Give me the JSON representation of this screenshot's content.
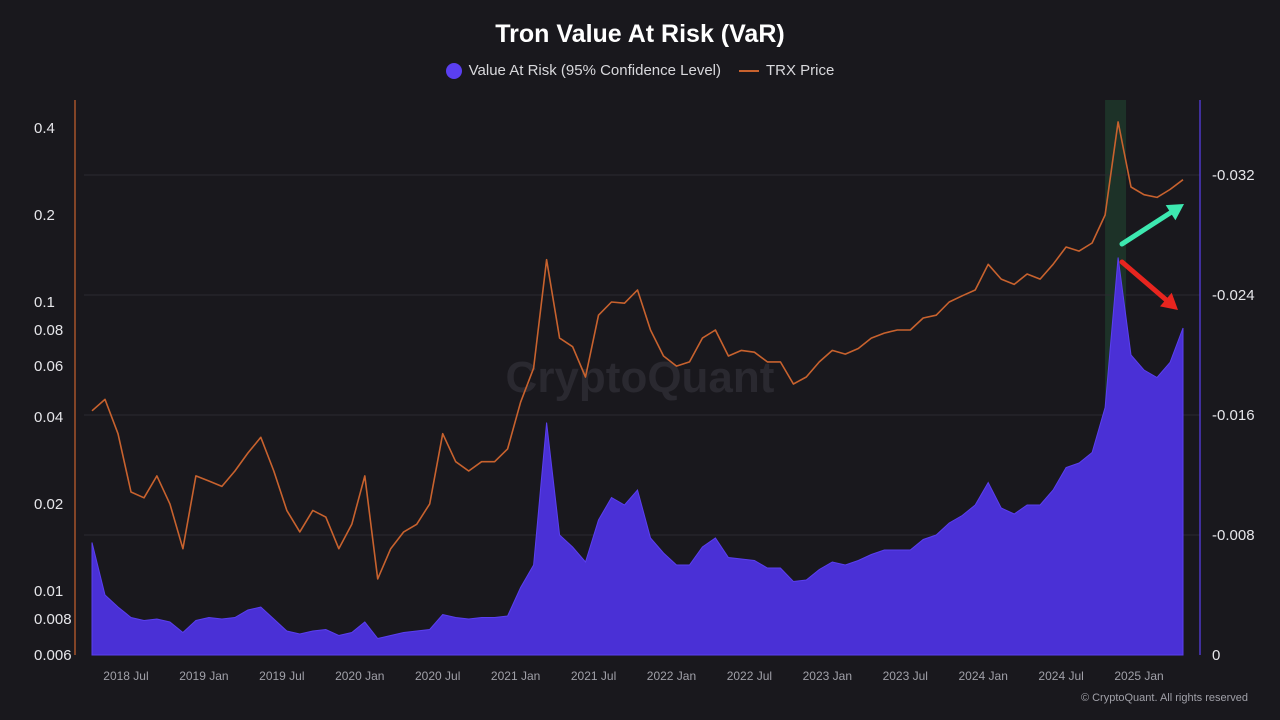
{
  "colors": {
    "background": "#19181d",
    "var_fill": "#4a30d6",
    "var_fill_top": "#5a3ff0",
    "price_line": "#c8622e",
    "left_axis": "#c8622e",
    "right_axis": "#5a3ff0",
    "highlight": "#1f3b2c",
    "arrow_up": "#3de8b0",
    "arrow_down": "#e8251f",
    "grid": "#2b2a31",
    "tick_text": "#e6e6ea",
    "date_text": "#a0a0a8"
  },
  "icons": [
    "arrow-up-green",
    "arrow-down-red",
    "copyright-icon"
  ],
  "footer": {
    "copyright": "© CryptoQuant. All rights reserved"
  },
  "watermark": "CryptoQuant",
  "chart_data": {
    "type": "area",
    "title": "Tron Value At Risk (VaR)",
    "legend": [
      {
        "name": "Value At Risk (95% Confidence Level)",
        "marker": "dot",
        "color": "#4a30d6"
      },
      {
        "name": "TRX Price",
        "marker": "line",
        "color": "#c8622e"
      }
    ],
    "x_ticks": [
      "2018 Jul",
      "2019 Jan",
      "2019 Jul",
      "2020 Jan",
      "2020 Jul",
      "2021 Jan",
      "2021 Jul",
      "2022 Jan",
      "2022 Jul",
      "2023 Jan",
      "2023 Jul",
      "2024 Jan",
      "2024 Jul",
      "2025 Jan"
    ],
    "x_range": [
      "2018-05",
      "2025-05"
    ],
    "left_axis": {
      "scale": "log",
      "ticks": [
        "0.4",
        "0.2",
        "0.1",
        "0.08",
        "0.06",
        "0.04",
        "0.02",
        "0.01",
        "0.008",
        "0.006"
      ],
      "range": [
        0.006,
        0.5
      ]
    },
    "right_axis": {
      "ticks": [
        "-0.032",
        "-0.024",
        "-0.016",
        "-0.008",
        "0"
      ],
      "range": [
        0,
        -0.037
      ]
    },
    "highlight_period": [
      "2024-11",
      "2024-12"
    ],
    "series": [
      {
        "name": "TRX Price",
        "type": "line",
        "axis": "left",
        "points": [
          [
            "2018-05",
            0.042
          ],
          [
            "2018-06",
            0.046
          ],
          [
            "2018-07",
            0.035
          ],
          [
            "2018-08",
            0.022
          ],
          [
            "2018-09",
            0.021
          ],
          [
            "2018-10",
            0.025
          ],
          [
            "2018-11",
            0.02
          ],
          [
            "2018-12",
            0.014
          ],
          [
            "2019-01",
            0.025
          ],
          [
            "2019-02",
            0.024
          ],
          [
            "2019-03",
            0.023
          ],
          [
            "2019-04",
            0.026
          ],
          [
            "2019-05",
            0.03
          ],
          [
            "2019-06",
            0.034
          ],
          [
            "2019-07",
            0.026
          ],
          [
            "2019-08",
            0.019
          ],
          [
            "2019-09",
            0.016
          ],
          [
            "2019-10",
            0.019
          ],
          [
            "2019-11",
            0.018
          ],
          [
            "2019-12",
            0.014
          ],
          [
            "2020-01",
            0.017
          ],
          [
            "2020-02",
            0.025
          ],
          [
            "2020-03",
            0.011
          ],
          [
            "2020-04",
            0.014
          ],
          [
            "2020-05",
            0.016
          ],
          [
            "2020-06",
            0.017
          ],
          [
            "2020-07",
            0.02
          ],
          [
            "2020-08",
            0.035
          ],
          [
            "2020-09",
            0.028
          ],
          [
            "2020-10",
            0.026
          ],
          [
            "2020-11",
            0.028
          ],
          [
            "2020-12",
            0.028
          ],
          [
            "2021-01",
            0.031
          ],
          [
            "2021-02",
            0.045
          ],
          [
            "2021-03",
            0.059
          ],
          [
            "2021-04",
            0.14
          ],
          [
            "2021-05",
            0.075
          ],
          [
            "2021-06",
            0.07
          ],
          [
            "2021-07",
            0.055
          ],
          [
            "2021-08",
            0.09
          ],
          [
            "2021-09",
            0.1
          ],
          [
            "2021-10",
            0.099
          ],
          [
            "2021-11",
            0.11
          ],
          [
            "2021-12",
            0.08
          ],
          [
            "2022-01",
            0.065
          ],
          [
            "2022-02",
            0.06
          ],
          [
            "2022-03",
            0.062
          ],
          [
            "2022-04",
            0.075
          ],
          [
            "2022-05",
            0.08
          ],
          [
            "2022-06",
            0.065
          ],
          [
            "2022-07",
            0.068
          ],
          [
            "2022-08",
            0.067
          ],
          [
            "2022-09",
            0.062
          ],
          [
            "2022-10",
            0.062
          ],
          [
            "2022-11",
            0.052
          ],
          [
            "2022-12",
            0.055
          ],
          [
            "2023-01",
            0.062
          ],
          [
            "2023-02",
            0.068
          ],
          [
            "2023-03",
            0.066
          ],
          [
            "2023-04",
            0.069
          ],
          [
            "2023-05",
            0.075
          ],
          [
            "2023-06",
            0.078
          ],
          [
            "2023-07",
            0.08
          ],
          [
            "2023-08",
            0.08
          ],
          [
            "2023-09",
            0.088
          ],
          [
            "2023-10",
            0.09
          ],
          [
            "2023-11",
            0.1
          ],
          [
            "2023-12",
            0.105
          ],
          [
            "2024-01",
            0.11
          ],
          [
            "2024-02",
            0.135
          ],
          [
            "2024-03",
            0.12
          ],
          [
            "2024-04",
            0.115
          ],
          [
            "2024-05",
            0.125
          ],
          [
            "2024-06",
            0.12
          ],
          [
            "2024-07",
            0.135
          ],
          [
            "2024-08",
            0.155
          ],
          [
            "2024-09",
            0.15
          ],
          [
            "2024-10",
            0.16
          ],
          [
            "2024-11",
            0.2
          ],
          [
            "2024-12",
            0.42
          ],
          [
            "2025-01",
            0.25
          ],
          [
            "2025-02",
            0.235
          ],
          [
            "2025-03",
            0.23
          ],
          [
            "2025-04",
            0.245
          ],
          [
            "2025-05",
            0.265
          ]
        ]
      },
      {
        "name": "Value At Risk (95% Confidence Level)",
        "type": "area",
        "axis": "right",
        "points": [
          [
            "2018-05",
            -0.0075
          ],
          [
            "2018-06",
            -0.004
          ],
          [
            "2018-07",
            -0.0032
          ],
          [
            "2018-08",
            -0.0025
          ],
          [
            "2018-09",
            -0.0023
          ],
          [
            "2018-10",
            -0.0024
          ],
          [
            "2018-11",
            -0.0022
          ],
          [
            "2018-12",
            -0.0015
          ],
          [
            "2019-01",
            -0.0023
          ],
          [
            "2019-02",
            -0.0025
          ],
          [
            "2019-03",
            -0.0024
          ],
          [
            "2019-04",
            -0.0025
          ],
          [
            "2019-05",
            -0.003
          ],
          [
            "2019-06",
            -0.0032
          ],
          [
            "2019-07",
            -0.0024
          ],
          [
            "2019-08",
            -0.0016
          ],
          [
            "2019-09",
            -0.0014
          ],
          [
            "2019-10",
            -0.0016
          ],
          [
            "2019-11",
            -0.0017
          ],
          [
            "2019-12",
            -0.0013
          ],
          [
            "2020-01",
            -0.0015
          ],
          [
            "2020-02",
            -0.0022
          ],
          [
            "2020-03",
            -0.0011
          ],
          [
            "2020-04",
            -0.0013
          ],
          [
            "2020-05",
            -0.0015
          ],
          [
            "2020-06",
            -0.0016
          ],
          [
            "2020-07",
            -0.0017
          ],
          [
            "2020-08",
            -0.0027
          ],
          [
            "2020-09",
            -0.0025
          ],
          [
            "2020-10",
            -0.0024
          ],
          [
            "2020-11",
            -0.0025
          ],
          [
            "2020-12",
            -0.0025
          ],
          [
            "2021-01",
            -0.0026
          ],
          [
            "2021-02",
            -0.0045
          ],
          [
            "2021-03",
            -0.006
          ],
          [
            "2021-04",
            -0.0155
          ],
          [
            "2021-05",
            -0.008
          ],
          [
            "2021-06",
            -0.0072
          ],
          [
            "2021-07",
            -0.0062
          ],
          [
            "2021-08",
            -0.009
          ],
          [
            "2021-09",
            -0.0105
          ],
          [
            "2021-10",
            -0.01
          ],
          [
            "2021-11",
            -0.011
          ],
          [
            "2021-12",
            -0.0078
          ],
          [
            "2022-01",
            -0.0068
          ],
          [
            "2022-02",
            -0.006
          ],
          [
            "2022-03",
            -0.006
          ],
          [
            "2022-04",
            -0.0072
          ],
          [
            "2022-05",
            -0.0078
          ],
          [
            "2022-06",
            -0.0065
          ],
          [
            "2022-07",
            -0.0064
          ],
          [
            "2022-08",
            -0.0063
          ],
          [
            "2022-09",
            -0.0058
          ],
          [
            "2022-10",
            -0.0058
          ],
          [
            "2022-11",
            -0.0049
          ],
          [
            "2022-12",
            -0.005
          ],
          [
            "2023-01",
            -0.0057
          ],
          [
            "2023-02",
            -0.0062
          ],
          [
            "2023-03",
            -0.006
          ],
          [
            "2023-04",
            -0.0063
          ],
          [
            "2023-05",
            -0.0067
          ],
          [
            "2023-06",
            -0.007
          ],
          [
            "2023-07",
            -0.007
          ],
          [
            "2023-08",
            -0.007
          ],
          [
            "2023-09",
            -0.0077
          ],
          [
            "2023-10",
            -0.008
          ],
          [
            "2023-11",
            -0.0088
          ],
          [
            "2023-12",
            -0.0093
          ],
          [
            "2024-01",
            -0.01
          ],
          [
            "2024-02",
            -0.0115
          ],
          [
            "2024-03",
            -0.0098
          ],
          [
            "2024-04",
            -0.0094
          ],
          [
            "2024-05",
            -0.01
          ],
          [
            "2024-06",
            -0.01
          ],
          [
            "2024-07",
            -0.011
          ],
          [
            "2024-08",
            -0.0125
          ],
          [
            "2024-09",
            -0.0128
          ],
          [
            "2024-10",
            -0.0135
          ],
          [
            "2024-11",
            -0.0165
          ],
          [
            "2024-12",
            -0.0265
          ],
          [
            "2025-01",
            -0.02
          ],
          [
            "2025-02",
            -0.019
          ],
          [
            "2025-03",
            -0.0185
          ],
          [
            "2025-04",
            -0.0195
          ],
          [
            "2025-05",
            -0.0218
          ]
        ]
      }
    ]
  }
}
